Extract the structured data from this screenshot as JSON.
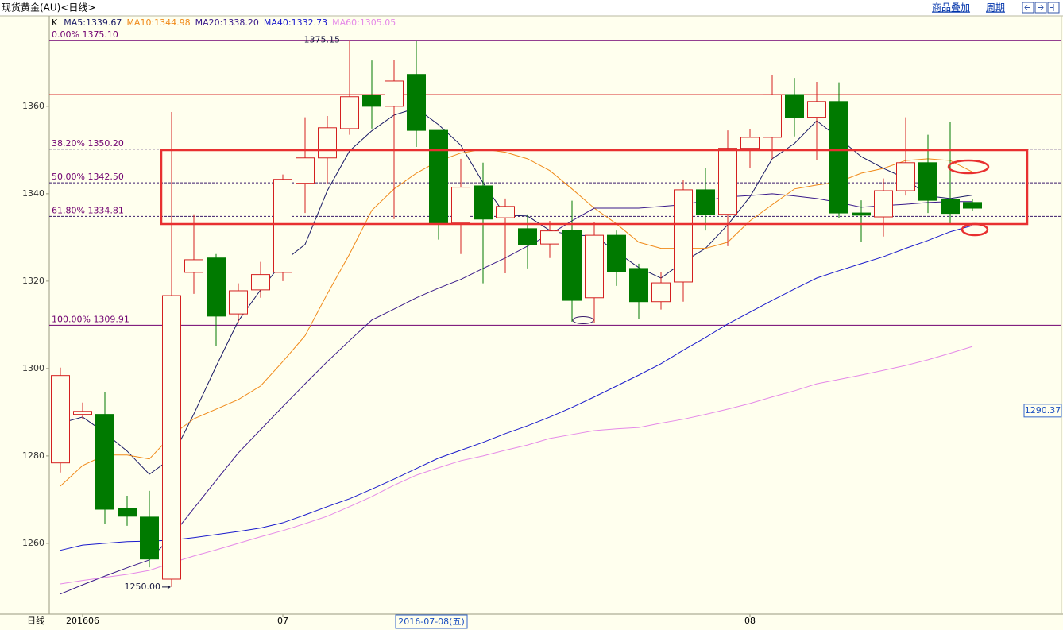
{
  "header": {
    "title": "现货黄金(AU)<日线>",
    "buttons": [
      "商品叠加",
      "周期"
    ]
  },
  "axis_corner": "日线",
  "cursor_date": "2016-07-08(五)",
  "chart_data": {
    "type": "candlestick",
    "legend_prefix": "K",
    "categories": [
      null,
      "201606",
      null,
      null,
      null,
      null,
      null,
      null,
      null,
      null,
      "07",
      null,
      null,
      null,
      null,
      null,
      null,
      null,
      null,
      null,
      null,
      null,
      null,
      null,
      null,
      null,
      null,
      null,
      null,
      null,
      null,
      "08",
      null,
      null,
      null,
      null,
      null,
      null,
      null,
      null,
      null,
      null
    ],
    "open": [
      1278.4,
      1289.5,
      1289.5,
      1268.0,
      1266.0,
      1251.8,
      1322.0,
      1325.3,
      1312.5,
      1318.0,
      1322.0,
      1342.4,
      1348.2,
      1354.9,
      1362.5,
      1360.0,
      1367.3,
      1354.5,
      1333.3,
      1341.8,
      1334.5,
      1332.0,
      1328.5,
      1331.6,
      1316.2,
      1330.5,
      1322.9,
      1315.3,
      1319.8,
      1340.9,
      1335.3,
      1350.4,
      1352.9,
      1362.7,
      1357.5,
      1361.1,
      1335.6,
      1334.7,
      1340.7,
      1347.1,
      1338.7,
      1338.0
    ],
    "high": [
      1300.2,
      1292.2,
      1294.7,
      1270.9,
      1272.0,
      1358.7,
      1335.3,
      1326.2,
      1319.5,
      1324.4,
      1344.4,
      1357.5,
      1357.8,
      1375.15,
      1370.5,
      1370.7,
      1374.9,
      1354.5,
      1348.0,
      1347.1,
      1338.9,
      1335.3,
      1333.8,
      1338.4,
      1333.5,
      1331.6,
      1324.0,
      1322.0,
      1343.1,
      1345.8,
      1354.5,
      1354.7,
      1367.1,
      1366.5,
      1365.6,
      1365.5,
      1338.5,
      1343.5,
      1357.5,
      1353.5,
      1356.5,
      1338.7
    ],
    "low": [
      1276.2,
      1288.4,
      1264.4,
      1264.0,
      1254.5,
      1250.0,
      1317.1,
      1305.1,
      1310.4,
      1316.2,
      1320.0,
      1335.6,
      1342.4,
      1353.5,
      1354.9,
      1334.2,
      1350.7,
      1329.5,
      1326.2,
      1319.5,
      1321.8,
      1322.9,
      1325.3,
      1310.7,
      1310.4,
      1318.9,
      1311.3,
      1313.5,
      1315.3,
      1331.6,
      1328.0,
      1345.8,
      1348.0,
      1353.1,
      1347.6,
      1334.5,
      1328.9,
      1330.2,
      1339.6,
      1335.6,
      1333.1,
      1336.0
    ],
    "close": [
      1298.4,
      1290.2,
      1267.8,
      1266.2,
      1256.4,
      1316.7,
      1324.9,
      1312.0,
      1317.8,
      1321.5,
      1343.3,
      1348.2,
      1355.1,
      1362.2,
      1360.0,
      1365.8,
      1354.5,
      1333.3,
      1341.5,
      1334.2,
      1337.1,
      1328.4,
      1331.5,
      1315.6,
      1330.5,
      1322.2,
      1315.3,
      1319.6,
      1340.9,
      1335.3,
      1350.4,
      1352.9,
      1362.7,
      1357.5,
      1361.1,
      1335.6,
      1335.1,
      1340.7,
      1347.1,
      1338.5,
      1335.5,
      1336.7
    ],
    "up_color": "#d42020",
    "down_color": "#007a00",
    "series": [
      {
        "name": "MA5:1339.67",
        "color": "#1a1a66",
        "values": [
          1287.5,
          1288.9,
          1285.3,
          1281.1,
          1275.8,
          1279.5,
          1289.6,
          1300.5,
          1310.9,
          1318.0,
          1324.4,
          1328.4,
          1340.7,
          1349.8,
          1354.4,
          1358.0,
          1359.6,
          1355.8,
          1351.1,
          1342.5,
          1335.1,
          1334.9,
          1331.6,
          1330.5,
          1330.4,
          1326.7,
          1323.1,
          1320.7,
          1324.4,
          1327.5,
          1332.9,
          1339.3,
          1348.0,
          1351.5,
          1356.7,
          1352.7,
          1348.5,
          1345.8,
          1343.5,
          1339.5,
          1338.9,
          1339.67
        ]
      },
      {
        "name": "MA10:1344.98",
        "color": "#f08a1a",
        "values": [
          1273.1,
          1277.8,
          1280.2,
          1280.2,
          1279.3,
          1284.7,
          1288.5,
          1290.7,
          1292.9,
          1296.0,
          1301.6,
          1307.5,
          1317.1,
          1326.2,
          1336.2,
          1341.1,
          1344.7,
          1347.5,
          1349.3,
          1350.2,
          1349.5,
          1348.0,
          1345.3,
          1341.1,
          1336.7,
          1333.1,
          1328.9,
          1327.5,
          1327.5,
          1327.5,
          1328.9,
          1333.8,
          1337.5,
          1341.1,
          1342.0,
          1342.7,
          1344.7,
          1345.8,
          1347.6,
          1348.0,
          1347.6,
          1344.98
        ]
      },
      {
        "name": "MA20:1338.20",
        "color": "#3a1a8a",
        "values": [
          1248.4,
          1250.5,
          1252.5,
          1254.4,
          1256.2,
          1261.6,
          1268.0,
          1274.4,
          1280.7,
          1286.0,
          1291.3,
          1296.5,
          1301.6,
          1306.4,
          1311.1,
          1313.6,
          1316.2,
          1318.4,
          1320.4,
          1322.9,
          1325.3,
          1328.0,
          1330.7,
          1333.8,
          1336.7,
          1336.7,
          1336.7,
          1337.1,
          1337.5,
          1338.4,
          1339.3,
          1339.6,
          1340.0,
          1339.5,
          1338.9,
          1338.0,
          1336.9,
          1337.3,
          1337.6,
          1338.0,
          1338.2,
          1338.2
        ]
      },
      {
        "name": "MA40:1332.73",
        "color": "#1a1acc",
        "values": [
          1258.4,
          1259.6,
          1260.0,
          1260.4,
          1260.5,
          1260.7,
          1261.3,
          1262.0,
          1262.7,
          1263.5,
          1264.7,
          1266.5,
          1268.4,
          1270.2,
          1272.4,
          1274.7,
          1277.1,
          1279.5,
          1281.3,
          1283.1,
          1285.1,
          1286.9,
          1288.9,
          1291.1,
          1293.5,
          1296.0,
          1298.5,
          1301.1,
          1304.2,
          1307.1,
          1310.2,
          1312.9,
          1315.6,
          1318.2,
          1320.7,
          1322.4,
          1324.0,
          1325.6,
          1327.5,
          1329.3,
          1331.3,
          1332.73
        ]
      },
      {
        "name": "MA60:1305.05",
        "color": "#e58ae8",
        "values": [
          1250.7,
          1251.5,
          1252.2,
          1252.9,
          1253.8,
          1255.5,
          1257.1,
          1258.5,
          1260.0,
          1261.5,
          1262.9,
          1264.5,
          1266.2,
          1268.4,
          1270.7,
          1273.3,
          1275.6,
          1277.3,
          1278.9,
          1280.0,
          1281.3,
          1282.5,
          1284.0,
          1284.9,
          1285.8,
          1286.2,
          1286.5,
          1287.5,
          1288.4,
          1289.5,
          1290.7,
          1292.0,
          1293.5,
          1294.9,
          1296.5,
          1297.5,
          1298.5,
          1299.6,
          1300.7,
          1302.0,
          1303.5,
          1305.05
        ]
      }
    ],
    "fib_levels": [
      {
        "value": 1375.1,
        "label": "0.00% 1375.10",
        "dashed": false
      },
      {
        "value": 1350.2,
        "label": "38.20% 1350.20",
        "dashed": true
      },
      {
        "value": 1342.5,
        "label": "50.00% 1342.50",
        "dashed": true
      },
      {
        "value": 1334.81,
        "label": "61.80% 1334.81",
        "dashed": true
      },
      {
        "value": 1309.91,
        "label": "100.00% 1309.91",
        "dashed": false
      }
    ],
    "resistance_line": 1362.7,
    "high_label": {
      "value": 1375.15,
      "label": "1375.15"
    },
    "low_label": {
      "value": 1250.0,
      "label": "1250.00"
    },
    "price_tag": {
      "value": 1290.37,
      "label": "1290.37"
    },
    "ylim": [
      1243.8,
      1380.7
    ],
    "yticks": [
      1260,
      1280,
      1300,
      1320,
      1340,
      1360
    ]
  }
}
